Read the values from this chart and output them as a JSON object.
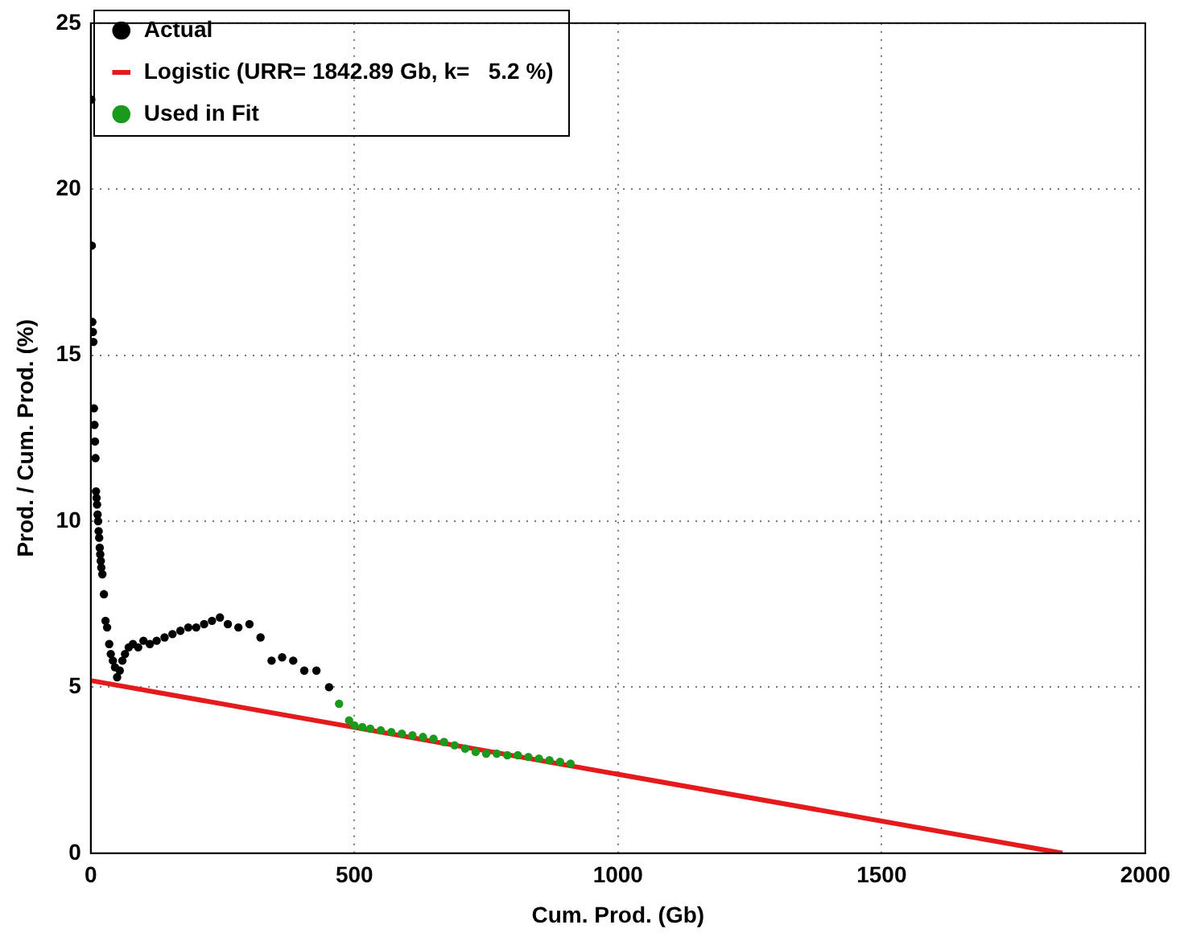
{
  "chart_data": {
    "type": "scatter",
    "xlabel": "Cum. Prod. (Gb)",
    "ylabel": "Prod. / Cum. Prod. (%)",
    "xlim": [
      0,
      2000
    ],
    "xticks": [
      0,
      500,
      1000,
      1500,
      2000
    ],
    "ylim": [
      0,
      25
    ],
    "yticks": [
      0,
      5,
      10,
      15,
      20,
      25
    ],
    "grid": true,
    "legend": "top left",
    "marker": "circle",
    "series": [
      {
        "name": "Actual",
        "type": "scatter",
        "color": "#000000",
        "x": [
          1,
          2,
          3,
          4,
          5,
          6,
          7,
          8,
          9,
          10,
          11,
          12,
          13,
          14,
          15,
          16,
          17,
          18,
          19,
          20,
          22,
          25,
          28,
          31,
          35,
          38,
          42,
          46,
          50,
          55,
          60,
          65,
          72,
          80,
          90,
          100,
          112,
          125,
          140,
          155,
          170,
          185,
          200,
          215,
          230,
          245,
          260,
          280,
          301,
          322,
          343,
          363,
          384,
          405,
          428,
          452
        ],
        "values": [
          22.7,
          18.3,
          16.0,
          15.7,
          15.4,
          13.4,
          12.9,
          12.4,
          11.9,
          10.9,
          10.7,
          10.5,
          10.2,
          10.0,
          9.7,
          9.5,
          9.2,
          9.0,
          8.8,
          8.6,
          8.4,
          7.8,
          7.0,
          6.8,
          6.3,
          6.0,
          5.8,
          5.6,
          5.3,
          5.5,
          5.8,
          6.0,
          6.2,
          6.3,
          6.2,
          6.4,
          6.3,
          6.4,
          6.5,
          6.6,
          6.7,
          6.8,
          6.8,
          6.9,
          7.0,
          7.1,
          6.9,
          6.8,
          6.9,
          6.5,
          5.8,
          5.9,
          5.8,
          5.5,
          5.5,
          5.0
        ]
      },
      {
        "name": "Logistic (URR= 1842.89 Gb, k=   5.2 %)",
        "type": "line",
        "color": "#e41a1c",
        "marker": "none",
        "line_style": "solid",
        "x": [
          0,
          1842.89
        ],
        "values": [
          5.2,
          0
        ]
      },
      {
        "name": "Used in Fit",
        "type": "scatter",
        "color": "#1a9a1a",
        "x": [
          471,
          490,
          500,
          515,
          530,
          550,
          570,
          590,
          610,
          630,
          650,
          670,
          690,
          710,
          730,
          750,
          770,
          790,
          810,
          830,
          850,
          870,
          890,
          910
        ],
        "values": [
          4.5,
          4.0,
          3.85,
          3.8,
          3.75,
          3.7,
          3.65,
          3.6,
          3.55,
          3.5,
          3.45,
          3.35,
          3.25,
          3.15,
          3.05,
          3.0,
          3.0,
          2.95,
          2.95,
          2.9,
          2.85,
          2.8,
          2.75,
          2.7
        ]
      }
    ]
  }
}
